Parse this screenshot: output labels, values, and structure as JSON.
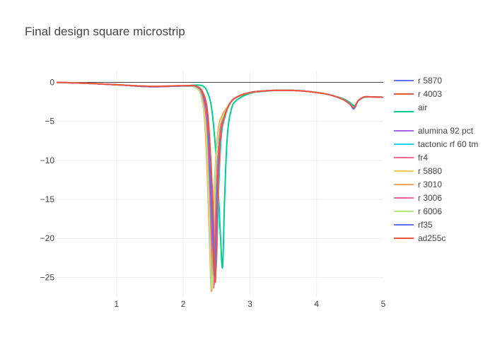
{
  "chart_data": {
    "type": "line",
    "title": "Final design square microstrip",
    "xlabel": "",
    "ylabel": "",
    "xlim": [
      0.1,
      5.0
    ],
    "ylim": [
      -27.5,
      1.5
    ],
    "xticks": [
      1,
      2,
      3,
      4,
      5
    ],
    "yticks": [
      0,
      -5,
      -10,
      -15,
      -20,
      -25
    ],
    "grid": true,
    "legend_position": "right",
    "colors": {
      "grid": "#eeeeee",
      "zero_line": "#444444",
      "tick_text": "#444444",
      "title_text": "#444444"
    },
    "series": [
      {
        "name": "r 5870",
        "color": "#636efa",
        "x": [
          0.1,
          0.5,
          1.0,
          1.5,
          2.0,
          2.2,
          2.3,
          2.35,
          2.4,
          2.43,
          2.46,
          2.5,
          2.55,
          2.6,
          2.7,
          2.8,
          3.0,
          3.2,
          3.5,
          3.8,
          4.0,
          4.2,
          4.4,
          4.5,
          4.56,
          4.62,
          4.7,
          4.8,
          5.0
        ],
        "y": [
          0,
          -0.1,
          -0.3,
          -0.55,
          -0.45,
          -0.6,
          -1.8,
          -4.5,
          -12,
          -20,
          -24.5,
          -13,
          -6.5,
          -4.5,
          -2.7,
          -1.9,
          -1.3,
          -1.1,
          -1.0,
          -1.1,
          -1.3,
          -1.6,
          -2.2,
          -2.8,
          -3.3,
          -2.4,
          -1.9,
          -1.85,
          -1.9
        ]
      },
      {
        "name": "r 4003",
        "color": "#ef553b",
        "x": [
          0.1,
          0.5,
          1.0,
          1.5,
          2.0,
          2.2,
          2.3,
          2.36,
          2.4,
          2.44,
          2.48,
          2.52,
          2.56,
          2.62,
          2.7,
          2.8,
          3.0,
          3.2,
          3.5,
          3.8,
          4.0,
          4.2,
          4.4,
          4.5,
          4.56,
          4.62,
          4.7,
          4.8,
          5.0
        ],
        "y": [
          0,
          -0.1,
          -0.3,
          -0.5,
          -0.42,
          -0.5,
          -1.4,
          -3.5,
          -8,
          -15,
          -22,
          -14,
          -7,
          -4.2,
          -2.7,
          -1.9,
          -1.3,
          -1.1,
          -1.0,
          -1.1,
          -1.3,
          -1.6,
          -2.2,
          -2.8,
          -3.2,
          -2.4,
          -1.9,
          -1.85,
          -1.9
        ]
      },
      {
        "name": "air",
        "color": "#00cc96",
        "x": [
          0.1,
          0.5,
          1.0,
          1.5,
          2.0,
          2.2,
          2.3,
          2.36,
          2.42,
          2.47,
          2.52,
          2.56,
          2.59,
          2.62,
          2.66,
          2.72,
          2.8,
          3.0,
          3.2,
          3.5,
          3.8,
          4.0,
          4.2,
          4.4,
          4.5,
          4.57,
          4.62,
          4.7,
          4.8,
          5.0
        ],
        "y": [
          0,
          -0.1,
          -0.3,
          -0.5,
          -0.45,
          -0.35,
          -0.5,
          -1.2,
          -3.0,
          -7.0,
          -13,
          -20,
          -23.6,
          -15,
          -7.0,
          -3.5,
          -2.3,
          -1.4,
          -1.15,
          -1.0,
          -1.1,
          -1.3,
          -1.6,
          -2.1,
          -2.6,
          -3.0,
          -2.4,
          -1.95,
          -1.85,
          -1.9
        ]
      },
      {
        "name": "alumina 92 pct",
        "color": "#ab63fa",
        "x": [
          0.1,
          0.5,
          1.0,
          1.5,
          2.0,
          2.2,
          2.3,
          2.36,
          2.41,
          2.45,
          2.48,
          2.52,
          2.56,
          2.62,
          2.7,
          2.8,
          3.0,
          3.2,
          3.5,
          3.8,
          4.0,
          4.2,
          4.4,
          4.5,
          4.56,
          4.62,
          4.7,
          4.8,
          5.0
        ],
        "y": [
          0,
          -0.1,
          -0.3,
          -0.55,
          -0.45,
          -0.6,
          -2.0,
          -5.0,
          -13,
          -21,
          -24.8,
          -13,
          -6.8,
          -4.4,
          -2.7,
          -1.9,
          -1.3,
          -1.1,
          -1.0,
          -1.1,
          -1.3,
          -1.6,
          -2.2,
          -2.8,
          -3.3,
          -2.4,
          -1.9,
          -1.85,
          -1.9
        ]
      },
      {
        "name": "tactonic rf 60 tm",
        "color": "#19d3f3",
        "x": [
          0.1,
          0.5,
          1.0,
          1.5,
          2.0,
          2.2,
          2.3,
          2.36,
          2.41,
          2.45,
          2.49,
          2.53,
          2.57,
          2.63,
          2.7,
          2.8,
          3.0,
          3.2,
          3.5,
          3.8,
          4.0,
          4.2,
          4.4,
          4.5,
          4.56,
          4.62,
          4.7,
          4.8,
          5.0
        ],
        "y": [
          0,
          -0.1,
          -0.3,
          -0.5,
          -0.45,
          -0.55,
          -1.6,
          -4.0,
          -10,
          -18,
          -24,
          -14,
          -7,
          -4.3,
          -2.7,
          -1.9,
          -1.3,
          -1.1,
          -1.0,
          -1.1,
          -1.3,
          -1.6,
          -2.2,
          -2.8,
          -3.2,
          -2.4,
          -1.9,
          -1.85,
          -1.9
        ]
      },
      {
        "name": "fr4",
        "color": "#ff6692",
        "x": [
          0.1,
          0.5,
          1.0,
          1.5,
          2.0,
          2.2,
          2.3,
          2.35,
          2.39,
          2.43,
          2.47,
          2.5,
          2.55,
          2.6,
          2.7,
          2.8,
          3.0,
          3.2,
          3.5,
          3.8,
          4.0,
          4.2,
          4.4,
          4.5,
          4.56,
          4.62,
          4.7,
          4.8,
          5.0
        ],
        "y": [
          0,
          -0.1,
          -0.3,
          -0.55,
          -0.45,
          -0.65,
          -2.3,
          -6.0,
          -14,
          -22,
          -25.5,
          -13,
          -6.5,
          -4.4,
          -2.7,
          -1.9,
          -1.3,
          -1.1,
          -1.0,
          -1.1,
          -1.3,
          -1.6,
          -2.2,
          -2.8,
          -3.3,
          -2.4,
          -1.9,
          -1.85,
          -1.9
        ]
      },
      {
        "name": "r 5880",
        "color": "#fecb52",
        "x": [
          0.1,
          0.5,
          1.0,
          1.5,
          2.0,
          2.2,
          2.3,
          2.34,
          2.38,
          2.41,
          2.44,
          2.48,
          2.53,
          2.6,
          2.7,
          2.8,
          3.0,
          3.2,
          3.5,
          3.8,
          4.0,
          4.2,
          4.4,
          4.5,
          4.56,
          4.62,
          4.7,
          4.8,
          5.0
        ],
        "y": [
          0,
          -0.1,
          -0.3,
          -0.55,
          -0.45,
          -0.7,
          -2.5,
          -6.5,
          -15,
          -23,
          -25.8,
          -12,
          -6.2,
          -4.3,
          -2.7,
          -1.9,
          -1.3,
          -1.1,
          -1.0,
          -1.1,
          -1.3,
          -1.6,
          -2.2,
          -2.8,
          -3.3,
          -2.4,
          -1.9,
          -1.85,
          -1.9
        ]
      },
      {
        "name": "r 3010",
        "color": "#ffa15a",
        "x": [
          0.1,
          0.5,
          1.0,
          1.5,
          2.0,
          2.2,
          2.28,
          2.33,
          2.37,
          2.4,
          2.43,
          2.47,
          2.52,
          2.58,
          2.7,
          2.8,
          3.0,
          3.2,
          3.5,
          3.8,
          4.0,
          4.2,
          4.4,
          4.5,
          4.56,
          4.62,
          4.7,
          4.8,
          5.0
        ],
        "y": [
          0,
          -0.1,
          -0.3,
          -0.5,
          -0.45,
          -0.75,
          -2.2,
          -6.0,
          -14,
          -22,
          -26.4,
          -13,
          -6.4,
          -4.3,
          -2.7,
          -1.9,
          -1.3,
          -1.1,
          -1.0,
          -1.1,
          -1.3,
          -1.6,
          -2.2,
          -2.8,
          -3.3,
          -2.4,
          -1.9,
          -1.85,
          -1.9
        ]
      },
      {
        "name": "r 3006",
        "color": "#ff6692",
        "x": [
          0.1,
          0.5,
          1.0,
          1.5,
          2.0,
          2.2,
          2.3,
          2.35,
          2.39,
          2.42,
          2.46,
          2.5,
          2.55,
          2.6,
          2.7,
          2.8,
          3.0,
          3.2,
          3.5,
          3.8,
          4.0,
          4.2,
          4.4,
          4.5,
          4.56,
          4.62,
          4.7,
          4.8,
          5.0
        ],
        "y": [
          0,
          -0.1,
          -0.3,
          -0.55,
          -0.45,
          -0.65,
          -2.3,
          -6.0,
          -14,
          -22,
          -25.9,
          -13,
          -6.5,
          -4.4,
          -2.7,
          -1.9,
          -1.3,
          -1.1,
          -1.0,
          -1.1,
          -1.3,
          -1.6,
          -2.2,
          -2.8,
          -3.3,
          -2.4,
          -1.9,
          -1.85,
          -1.9
        ]
      },
      {
        "name": "r 6006",
        "color": "#b6e880",
        "x": [
          0.1,
          0.5,
          1.0,
          1.5,
          2.0,
          2.2,
          2.28,
          2.34,
          2.38,
          2.41,
          2.44,
          2.48,
          2.53,
          2.6,
          2.7,
          2.8,
          3.0,
          3.2,
          3.5,
          3.8,
          4.0,
          4.2,
          4.4,
          4.5,
          4.56,
          4.62,
          4.7,
          4.8,
          5.0
        ],
        "y": [
          0,
          -0.1,
          -0.3,
          -0.5,
          -0.45,
          -0.7,
          -2.2,
          -6.2,
          -14.5,
          -22.5,
          -26.0,
          -12.5,
          -6.3,
          -4.3,
          -2.7,
          -1.9,
          -1.3,
          -1.1,
          -1.0,
          -1.1,
          -1.3,
          -1.6,
          -2.2,
          -2.8,
          -3.3,
          -2.4,
          -1.9,
          -1.85,
          -1.9
        ]
      },
      {
        "name": "rf35",
        "color": "#636efa",
        "x": [
          0.1,
          0.5,
          1.0,
          1.5,
          2.0,
          2.2,
          2.3,
          2.36,
          2.4,
          2.44,
          2.47,
          2.51,
          2.56,
          2.62,
          2.7,
          2.8,
          3.0,
          3.2,
          3.5,
          3.8,
          4.0,
          4.2,
          4.4,
          4.5,
          4.56,
          4.62,
          4.7,
          4.8,
          5.0
        ],
        "y": [
          0,
          -0.1,
          -0.3,
          -0.55,
          -0.45,
          -0.55,
          -1.7,
          -4.5,
          -11,
          -19,
          -24.6,
          -13.5,
          -6.8,
          -4.4,
          -2.7,
          -1.9,
          -1.3,
          -1.1,
          -1.0,
          -1.1,
          -1.3,
          -1.6,
          -2.2,
          -2.8,
          -3.4,
          -2.4,
          -1.9,
          -1.85,
          -1.9
        ]
      },
      {
        "name": "ad255c",
        "color": "#ef553b",
        "x": [
          0.1,
          0.5,
          1.0,
          1.5,
          2.0,
          2.2,
          2.3,
          2.36,
          2.41,
          2.45,
          2.48,
          2.52,
          2.56,
          2.62,
          2.7,
          2.8,
          3.0,
          3.2,
          3.5,
          3.8,
          4.0,
          4.2,
          4.4,
          4.5,
          4.56,
          4.62,
          4.7,
          4.8,
          5.0
        ],
        "y": [
          0,
          -0.1,
          -0.3,
          -0.5,
          -0.42,
          -0.5,
          -1.5,
          -3.8,
          -9.5,
          -17,
          -25.6,
          -14,
          -7,
          -4.3,
          -2.7,
          -1.9,
          -1.3,
          -1.1,
          -1.0,
          -1.1,
          -1.3,
          -1.6,
          -2.2,
          -2.8,
          -3.2,
          -2.4,
          -1.9,
          -1.85,
          -1.9
        ]
      }
    ]
  }
}
